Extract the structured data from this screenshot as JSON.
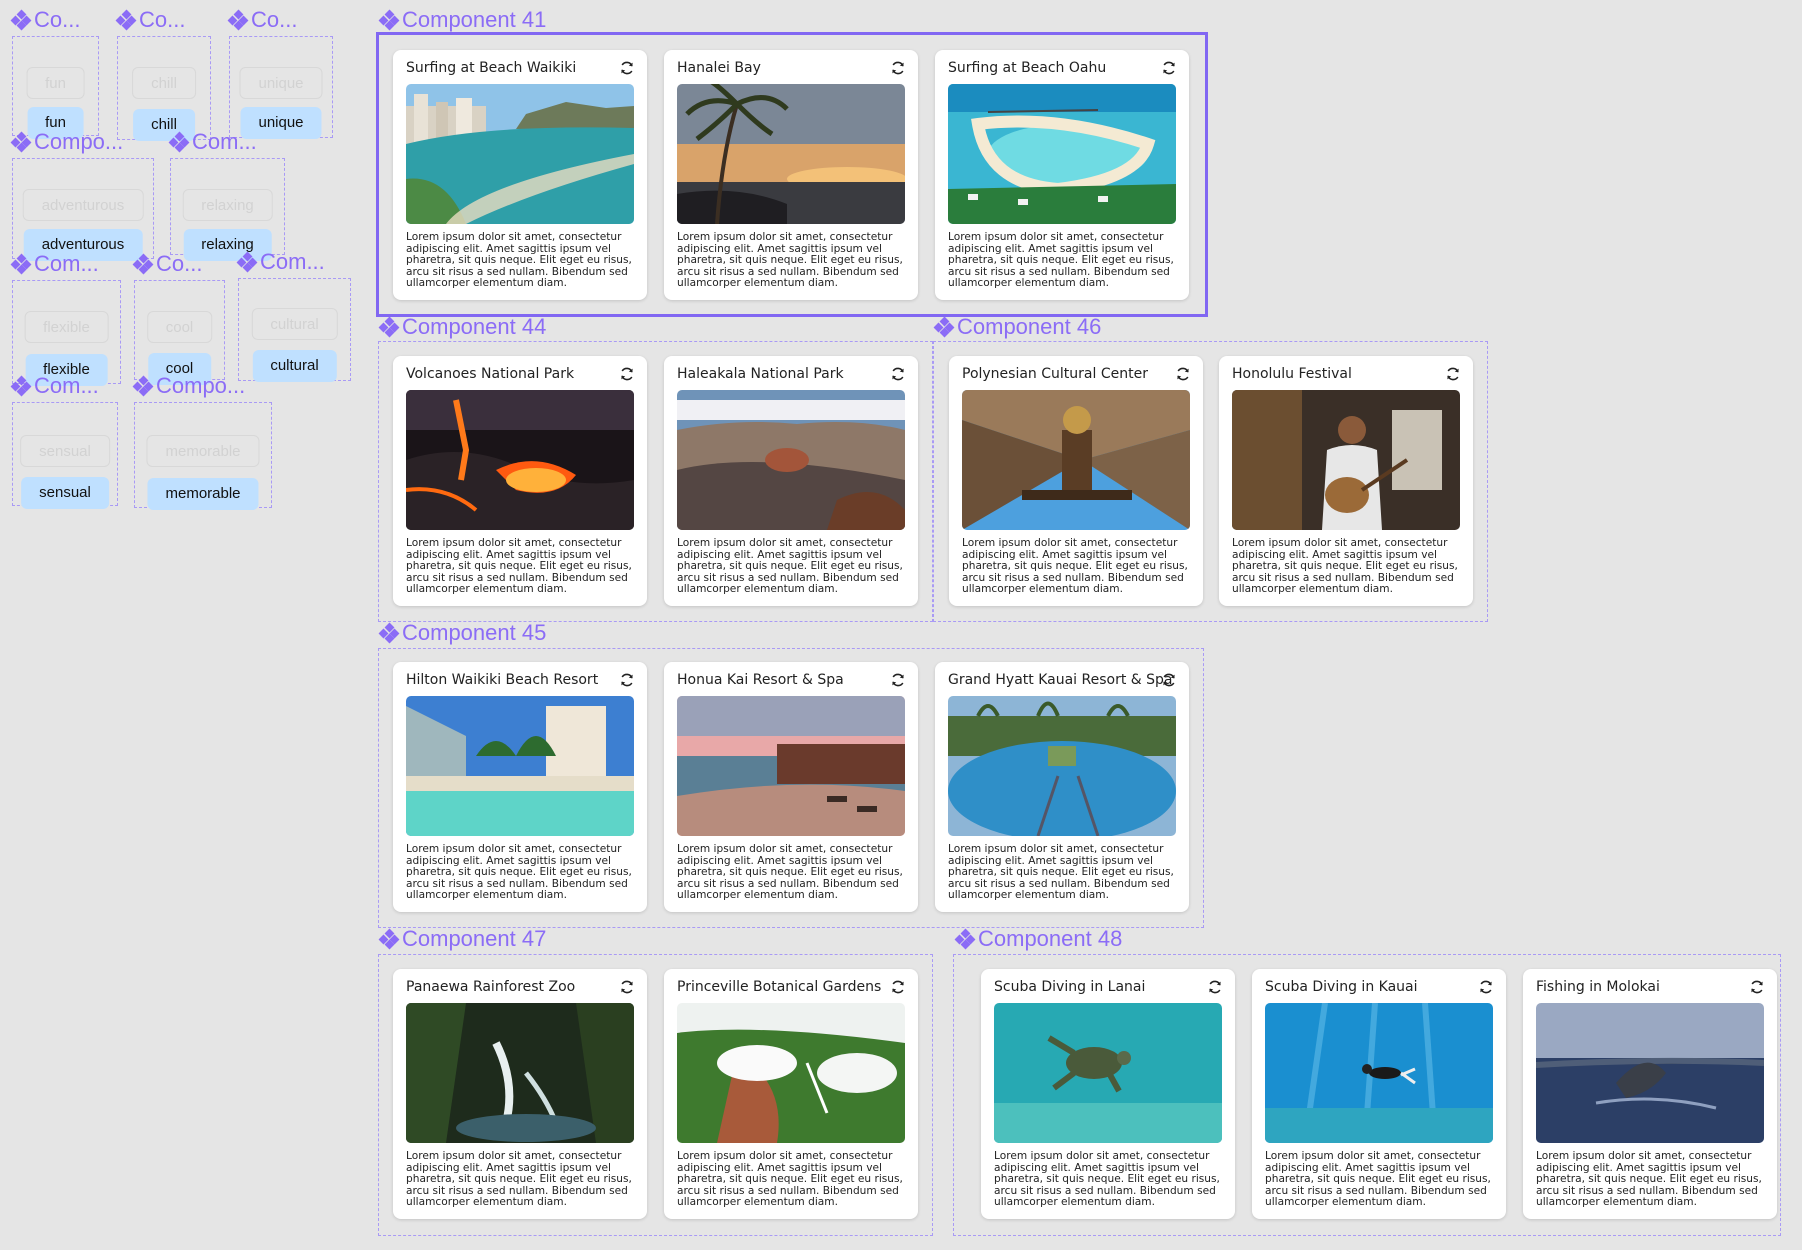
{
  "colors": {
    "accent": "#8b6cf6",
    "pill_active": "#bfe0ff",
    "canvas": "#e5e5e5"
  },
  "variants": [
    {
      "label": "Co...",
      "ghost": "fun",
      "active": "fun"
    },
    {
      "label": "Co...",
      "ghost": "chill",
      "active": "chill"
    },
    {
      "label": "Co...",
      "ghost": "unique",
      "active": "unique"
    },
    {
      "label": "Compo...",
      "ghost": "adventurous",
      "active": "adventurous"
    },
    {
      "label": "Com...",
      "ghost": "relaxing",
      "active": "relaxing"
    },
    {
      "label": "Com...",
      "ghost": "flexible",
      "active": "flexible"
    },
    {
      "label": "Co...",
      "ghost": "cool",
      "active": "cool"
    },
    {
      "label": "Com...",
      "ghost": "cultural",
      "active": "cultural"
    },
    {
      "label": "Com...",
      "ghost": "sensual",
      "active": "sensual"
    },
    {
      "label": "Compo...",
      "ghost": "memorable",
      "active": "memorable"
    }
  ],
  "lorem": "Lorem ipsum dolor sit amet, consectetur adipiscing elit. Amet sagittis ipsum vel pharetra, sit quis neque. Elit eget eu risus, arcu sit risus a sed nullam. Bibendum sed ullamcorper elementum diam.",
  "components": [
    {
      "label": "Component 41",
      "cards": [
        {
          "title": "Surfing at Beach Waikiki",
          "image": "beach-city"
        },
        {
          "title": "Hanalei Bay",
          "image": "sunset-palm"
        },
        {
          "title": "Surfing at Beach Oahu",
          "image": "lagoon"
        }
      ]
    },
    {
      "label": "Component 44",
      "cards": [
        {
          "title": "Volcanoes National Park",
          "image": "lava"
        },
        {
          "title": "Haleakala National Park",
          "image": "crater"
        }
      ]
    },
    {
      "label": "Component 46",
      "cards": [
        {
          "title": "Polynesian Cultural Center",
          "image": "carving"
        },
        {
          "title": "Honolulu Festival",
          "image": "musician"
        }
      ]
    },
    {
      "label": "Component 45",
      "cards": [
        {
          "title": "Hilton Waikiki Beach Resort",
          "image": "resort-beach"
        },
        {
          "title": "Honua Kai Resort & Spa",
          "image": "resort-dusk"
        },
        {
          "title": "Grand Hyatt Kauai Resort & Spa",
          "image": "pool"
        }
      ]
    },
    {
      "label": "Component 47",
      "cards": [
        {
          "title": "Panaewa Rainforest Zoo",
          "image": "rainforest"
        },
        {
          "title": "Princeville Botanical Gardens",
          "image": "canyon"
        }
      ]
    },
    {
      "label": "Component 48",
      "cards": [
        {
          "title": "Scuba Diving in Lanai",
          "image": "turtle"
        },
        {
          "title": "Scuba Diving in Kauai",
          "image": "diver"
        },
        {
          "title": "Fishing in Molokai",
          "image": "whale"
        }
      ]
    }
  ]
}
